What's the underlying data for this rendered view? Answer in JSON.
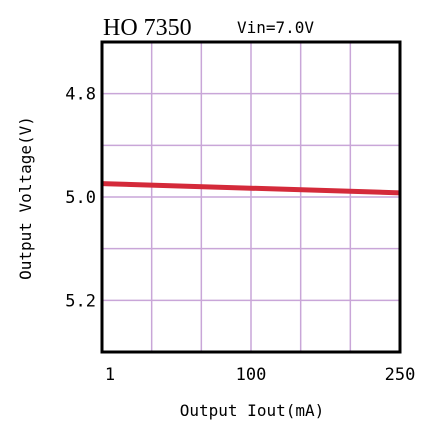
{
  "chart_data": {
    "type": "line",
    "title": "HO 7350",
    "subtitle": "Vin=7.0V",
    "xlabel": "Output Iout(mA)",
    "ylabel": "Output Voltage(V)",
    "x_tick_labels": [
      "1",
      "100",
      "250"
    ],
    "y_tick_labels": [
      "5.2",
      "5.0",
      "4.8"
    ],
    "ylim": [
      4.7,
      5.3
    ],
    "y_ticks": [
      4.8,
      5.0,
      5.2
    ],
    "grid": true,
    "series": [
      {
        "color": "#d42a3a",
        "points": [
          {
            "x": 1,
            "y": 5.026
          },
          {
            "x": 250,
            "y": 5.008
          }
        ]
      }
    ]
  }
}
